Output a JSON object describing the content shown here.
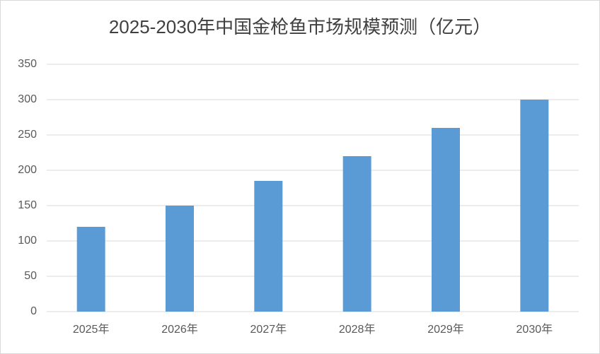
{
  "chart_data": {
    "type": "bar",
    "title": "2025-2030年中国金枪鱼市场规模预测（亿元）",
    "categories": [
      "2025年",
      "2026年",
      "2027年",
      "2028年",
      "2029年",
      "2030年"
    ],
    "values": [
      120,
      150,
      185,
      220,
      260,
      300
    ],
    "color": "#5b9bd5",
    "ylim": [
      0,
      350
    ],
    "yticks": [
      0,
      50,
      100,
      150,
      200,
      250,
      300,
      350
    ],
    "grid": true
  }
}
